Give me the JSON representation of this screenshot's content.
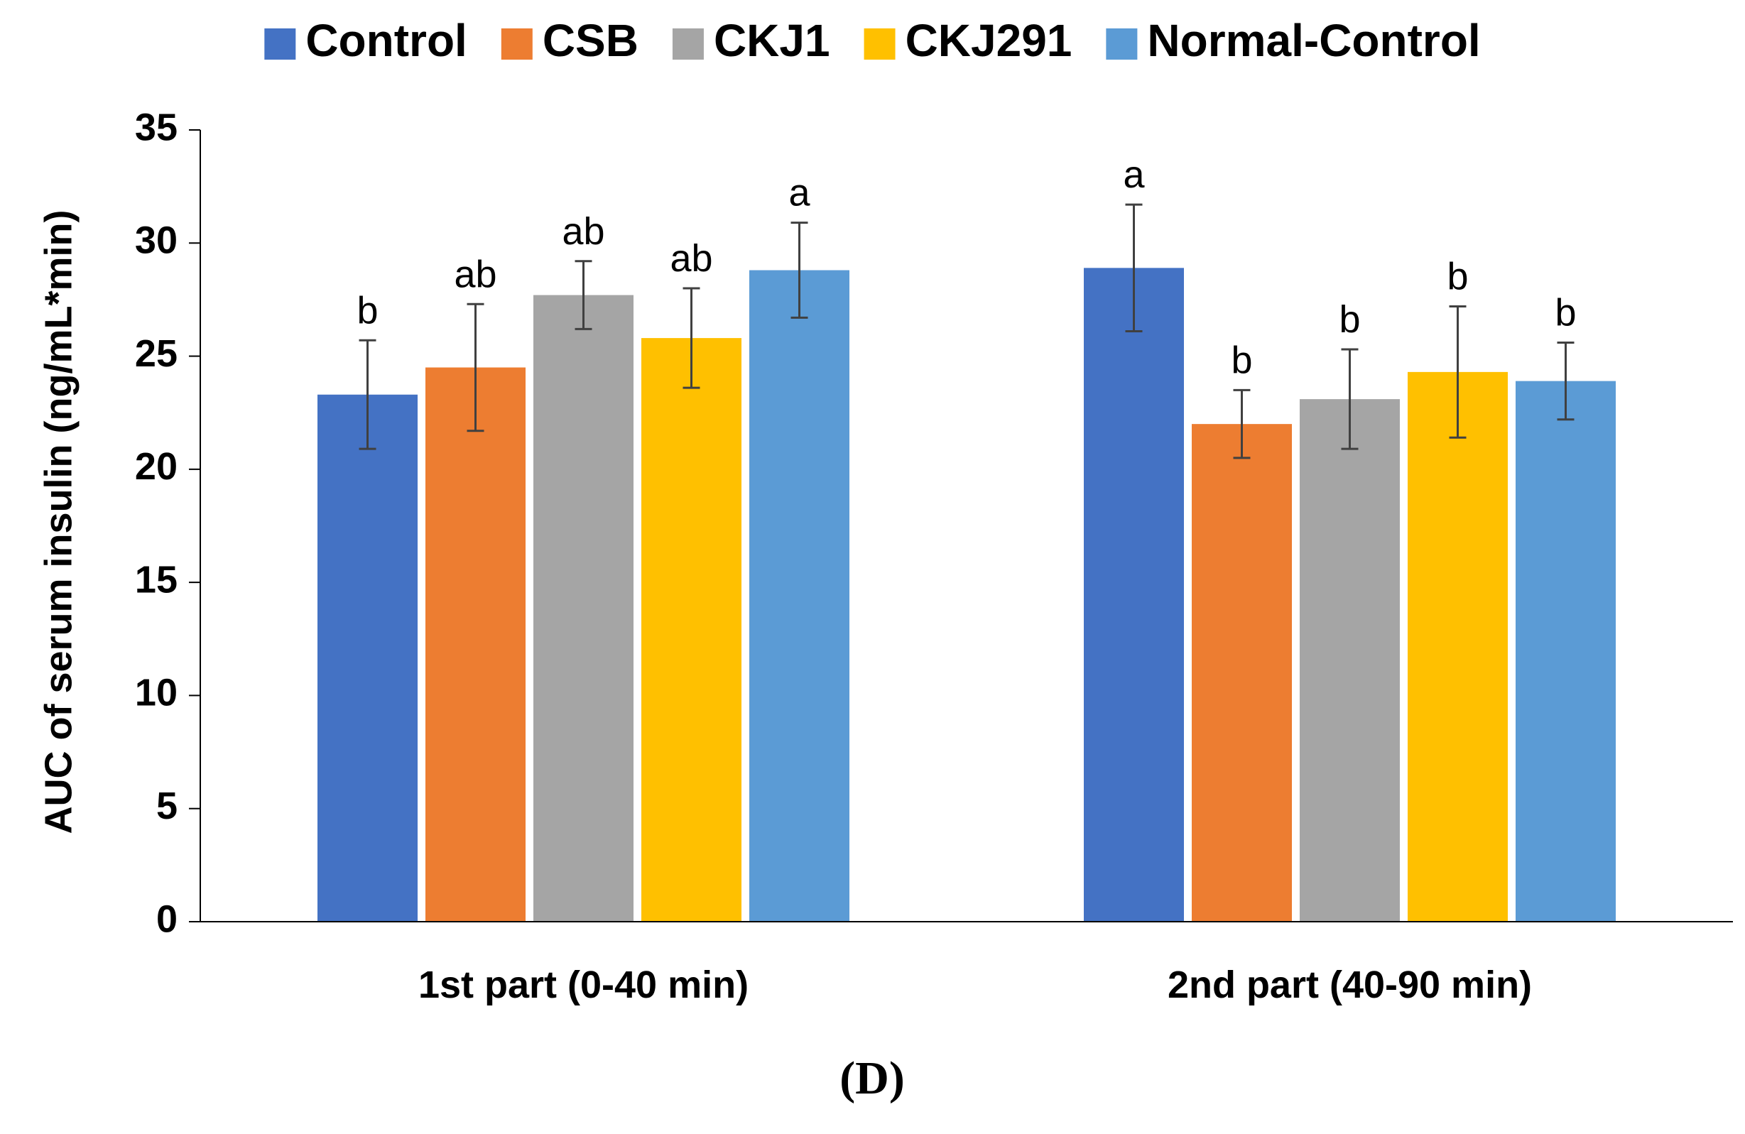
{
  "chart_data": {
    "type": "bar",
    "categories": [
      "1st part (0-40 min)",
      "2nd part (40-90 min)"
    ],
    "series": [
      {
        "name": "Control",
        "color": "#4472C4",
        "values": [
          23.3,
          28.9
        ],
        "errors": [
          2.4,
          2.8
        ],
        "labels": [
          "b",
          "a"
        ]
      },
      {
        "name": "CSB",
        "color": "#ED7D31",
        "values": [
          24.5,
          22.0
        ],
        "errors": [
          2.8,
          1.5
        ],
        "labels": [
          "ab",
          "b"
        ]
      },
      {
        "name": "CKJ1",
        "color": "#A5A5A5",
        "values": [
          27.7,
          23.1
        ],
        "errors": [
          1.5,
          2.2
        ],
        "labels": [
          "ab",
          "b"
        ]
      },
      {
        "name": "CKJ291",
        "color": "#FFC000",
        "values": [
          25.8,
          24.3
        ],
        "errors": [
          2.2,
          2.9
        ],
        "labels": [
          "ab",
          "b"
        ]
      },
      {
        "name": "Normal-Control",
        "color": "#5B9BD5",
        "values": [
          28.8,
          23.9
        ],
        "errors": [
          2.1,
          1.7
        ],
        "labels": [
          "a",
          "b"
        ]
      }
    ],
    "ylabel": "AUC of serum insulin (ng/mL*min)",
    "xlabel": "",
    "ylim": [
      0,
      35
    ],
    "yticks": [
      0,
      5,
      10,
      15,
      20,
      25,
      30,
      35
    ],
    "grid": false,
    "legend": "top",
    "panel_label": "(D)"
  }
}
